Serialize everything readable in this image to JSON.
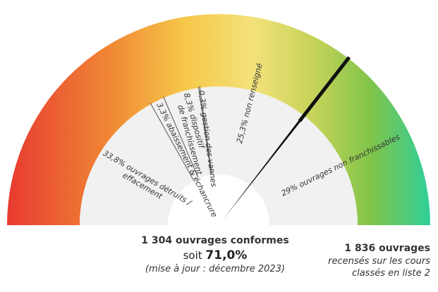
{
  "chart_data": {
    "type": "gauge",
    "range": [
      0,
      100
    ],
    "needle_value": 71.0,
    "segments": [
      {
        "value": 33.8,
        "label": "33,8% ouvrages détruits / effacement"
      },
      {
        "value": 3.3,
        "label": "3,3% abaissement & échancrure"
      },
      {
        "value": 8.3,
        "label": "8,3% dispositif de franchissement"
      },
      {
        "value": 0.3,
        "label": "0,3% gestion des vannes"
      },
      {
        "value": 25.3,
        "label": "25,3% non renseigné"
      },
      {
        "value": 29.0,
        "label": "29% ouvrages non franchissables"
      }
    ]
  },
  "summary": {
    "conformes": "1 304 ouvrages conformes",
    "soit": "soit ",
    "pct": "71,0%",
    "update": "(mise à jour : décembre 2023)"
  },
  "total": {
    "count": "1 836 ouvrages",
    "line2": "recensés sur les cours",
    "line3": "classés  en liste 2"
  },
  "colors": {
    "gradient": [
      "#e83a30",
      "#f08a35",
      "#f6c84a",
      "#f3e27a",
      "#c8d35a",
      "#7fc44a",
      "#2fcf9c"
    ],
    "inner_band": "#f1f1f1",
    "divider": "#555555",
    "needle": "#111111"
  }
}
